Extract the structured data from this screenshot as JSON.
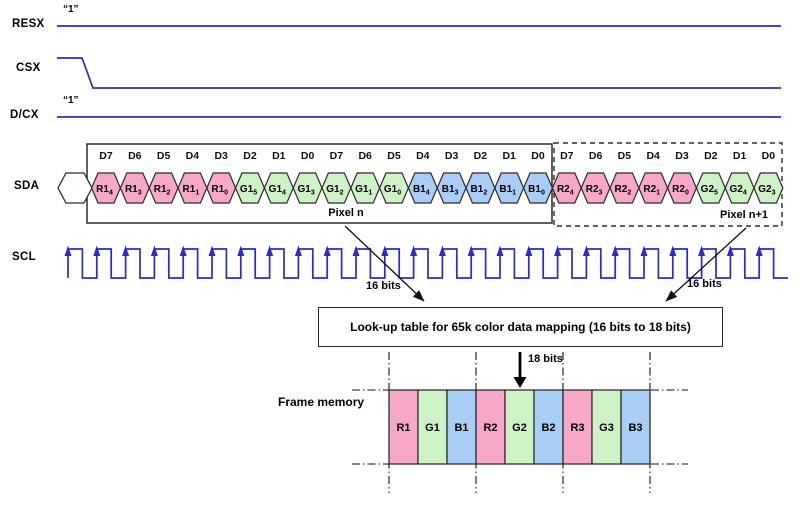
{
  "signals": {
    "resx": {
      "label": "RESX",
      "value": "“1”"
    },
    "csx": {
      "label": "CSX"
    },
    "dcx": {
      "label": "D/CX",
      "value": "“1”"
    },
    "sda": {
      "label": "SDA"
    },
    "scl": {
      "label": "SCL",
      "pulses": 25
    }
  },
  "data_stream": {
    "leading_empty_hex": true,
    "bit_labels": [
      "D7",
      "D6",
      "D5",
      "D4",
      "D3",
      "D2",
      "D1",
      "D0",
      "D7",
      "D6",
      "D5",
      "D4",
      "D3",
      "D2",
      "D1",
      "D0",
      "D7",
      "D6",
      "D5",
      "D4",
      "D3",
      "D2",
      "D1",
      "D0"
    ],
    "bits": [
      {
        "base": "R1",
        "sub": "4",
        "color": "pink"
      },
      {
        "base": "R1",
        "sub": "3",
        "color": "pink"
      },
      {
        "base": "R1",
        "sub": "2",
        "color": "pink"
      },
      {
        "base": "R1",
        "sub": "1",
        "color": "pink"
      },
      {
        "base": "R1",
        "sub": "0",
        "color": "pink"
      },
      {
        "base": "G1",
        "sub": "5",
        "color": "green"
      },
      {
        "base": "G1",
        "sub": "4",
        "color": "green"
      },
      {
        "base": "G1",
        "sub": "3",
        "color": "green"
      },
      {
        "base": "G1",
        "sub": "2",
        "color": "green"
      },
      {
        "base": "G1",
        "sub": "1",
        "color": "green"
      },
      {
        "base": "G1",
        "sub": "0",
        "color": "green"
      },
      {
        "base": "B1",
        "sub": "4",
        "color": "blue"
      },
      {
        "base": "B1",
        "sub": "3",
        "color": "blue"
      },
      {
        "base": "B1",
        "sub": "2",
        "color": "blue"
      },
      {
        "base": "B1",
        "sub": "1",
        "color": "blue"
      },
      {
        "base": "B1",
        "sub": "0",
        "color": "blue"
      },
      {
        "base": "R2",
        "sub": "4",
        "color": "pink"
      },
      {
        "base": "R2",
        "sub": "3",
        "color": "pink"
      },
      {
        "base": "R2",
        "sub": "2",
        "color": "pink"
      },
      {
        "base": "R2",
        "sub": "1",
        "color": "pink"
      },
      {
        "base": "R2",
        "sub": "0",
        "color": "pink"
      },
      {
        "base": "G2",
        "sub": "5",
        "color": "green"
      },
      {
        "base": "G2",
        "sub": "4",
        "color": "green"
      },
      {
        "base": "G2",
        "sub": "3",
        "color": "green"
      }
    ],
    "pixel_n_label": "Pixel n",
    "pixel_n1_label": "Pixel n+1"
  },
  "annotations": {
    "bits16_first": "16 bits",
    "bits16_second": "16 bits",
    "bits18": "18 bits"
  },
  "lut": {
    "text": "Look-up table for 65k color data mapping (16 bits to 18 bits)"
  },
  "frame_memory": {
    "label": "Frame memory",
    "cells": [
      {
        "label": "R1",
        "color": "pink"
      },
      {
        "label": "G1",
        "color": "green"
      },
      {
        "label": "B1",
        "color": "blue"
      },
      {
        "label": "R2",
        "color": "pink"
      },
      {
        "label": "G2",
        "color": "green"
      },
      {
        "label": "B2",
        "color": "blue"
      },
      {
        "label": "R3",
        "color": "pink"
      },
      {
        "label": "G3",
        "color": "green"
      },
      {
        "label": "B3",
        "color": "blue"
      }
    ]
  },
  "colors": {
    "pink": "#f7a8c8",
    "green": "#cdf2c6",
    "blue": "#a9cdf4",
    "white": "#ffffff",
    "signal_blue": "#2a2ad2",
    "line_black": "#1c1c1c"
  }
}
